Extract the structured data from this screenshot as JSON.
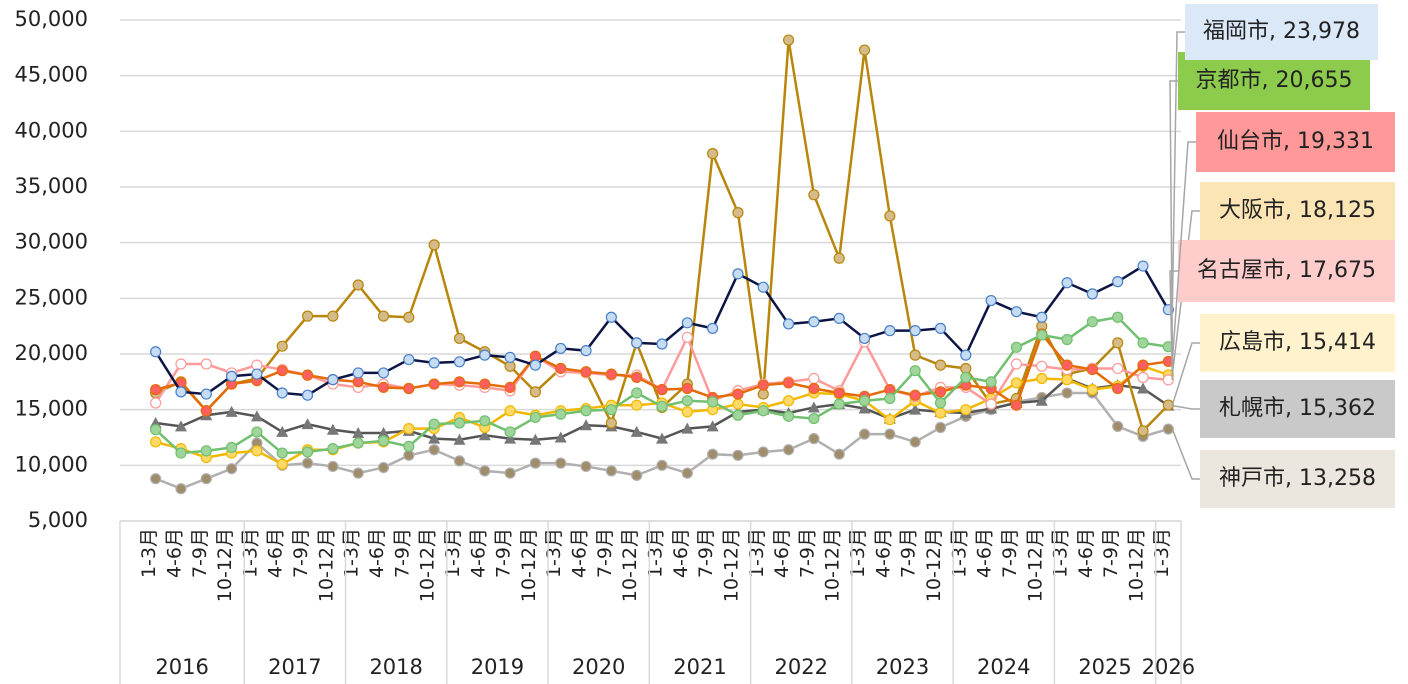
{
  "chart_data": {
    "type": "line",
    "categories": [
      "1-3月",
      "4-6月",
      "7-9月",
      "10-12月",
      "1-3月",
      "4-6月",
      "7-9月",
      "10-12月",
      "1-3月",
      "4-6月",
      "7-9月",
      "10-12月",
      "1-3月",
      "4-6月",
      "7-9月",
      "10-12月",
      "1-3月",
      "4-6月",
      "7-9月",
      "10-12月",
      "1-3月",
      "4-6月",
      "7-9月",
      "10-12月",
      "1-3月",
      "4-6月",
      "7-9月",
      "10-12月",
      "1-3月",
      "4-6月",
      "7-9月",
      "10-12月",
      "1-3月",
      "4-6月",
      "7-9月",
      "10-12月",
      "1-3月",
      "4-6月",
      "7-9月",
      "10-12月",
      "1-3月"
    ],
    "groups": [
      {
        "label": "2016",
        "span": 4
      },
      {
        "label": "2017",
        "span": 4
      },
      {
        "label": "2018",
        "span": 4
      },
      {
        "label": "2019",
        "span": 4
      },
      {
        "label": "2020",
        "span": 4
      },
      {
        "label": "2021",
        "span": 4
      },
      {
        "label": "2022",
        "span": 4
      },
      {
        "label": "2023",
        "span": 4
      },
      {
        "label": "2024",
        "span": 4
      },
      {
        "label": "2025",
        "span": 4
      },
      {
        "label": "2026",
        "span": 1
      }
    ],
    "ylim": [
      5000,
      50000
    ],
    "yticks": [
      {
        "value": 5000,
        "label": "5,000"
      },
      {
        "value": 10000,
        "label": "10,000"
      },
      {
        "value": 15000,
        "label": "15,000"
      },
      {
        "value": 20000,
        "label": "20,000"
      },
      {
        "value": 25000,
        "label": "25,000"
      },
      {
        "value": 30000,
        "label": "30,000"
      },
      {
        "value": 35000,
        "label": "35,000"
      },
      {
        "value": 40000,
        "label": "40,000"
      },
      {
        "value": 45000,
        "label": "45,000"
      },
      {
        "value": 50000,
        "label": "50,000"
      }
    ],
    "grid": true,
    "series": [
      {
        "label": "神戸市, 13,258",
        "color": "#b0b0b0",
        "marker_color": "#a08d6c",
        "marker": "circle",
        "label_color": "#ebe7df",
        "values": [
          8800,
          7900,
          8800,
          9700,
          12000,
          10000,
          10200,
          9900,
          9300,
          9800,
          10900,
          11400,
          10400,
          9500,
          9300,
          10200,
          10200,
          9900,
          9500,
          9100,
          10000,
          9300,
          11000,
          10900,
          11200,
          11400,
          12400,
          11000,
          12800,
          12800,
          12100,
          13400,
          14400,
          15000,
          15700,
          16100,
          16500,
          16500,
          13500,
          12600,
          13258
        ]
      },
      {
        "label": "札幌市, 15,362",
        "color": "#555555",
        "marker_color": "#777777",
        "marker": "triangle",
        "label_color": "#c9c9c9",
        "values": [
          13800,
          13500,
          14500,
          14800,
          14400,
          13000,
          13700,
          13200,
          12900,
          12900,
          13100,
          12400,
          12300,
          12700,
          12400,
          12300,
          12500,
          13600,
          13500,
          13000,
          12400,
          13300,
          13500,
          14800,
          15000,
          14700,
          15200,
          15500,
          15100,
          14200,
          15000,
          14800,
          14700,
          15100,
          15600,
          15800,
          17800,
          16900,
          17200,
          16900,
          15362
        ]
      },
      {
        "label": "広島市, 15,414",
        "color": "#b8860b",
        "marker_color": "#d6bb8a",
        "marker": "circle",
        "label_color": "#fff2cc",
        "values": [
          16500,
          17500,
          14900,
          17300,
          17800,
          20700,
          23400,
          23400,
          26200,
          23400,
          23300,
          29800,
          21400,
          20200,
          18900,
          16600,
          18700,
          18400,
          13800,
          21000,
          15200,
          17300,
          38000,
          32700,
          16400,
          48200,
          34300,
          28600,
          47300,
          32400,
          19900,
          19000,
          18700,
          15500,
          16000,
          22500,
          18200,
          18700,
          21000,
          13100,
          15414
        ]
      },
      {
        "label": "大阪市, 18,125",
        "color": "#f2b800",
        "marker_color": "#ffd966",
        "marker": "circle",
        "label_color": "#fbe5b4",
        "values": [
          12100,
          11500,
          10700,
          11100,
          11300,
          10100,
          11400,
          11400,
          12000,
          12100,
          13300,
          13300,
          14300,
          13400,
          14900,
          14500,
          14900,
          15100,
          15400,
          15400,
          15600,
          14800,
          15000,
          15500,
          15200,
          15800,
          16500,
          16400,
          15800,
          14100,
          15800,
          14700,
          15000,
          16000,
          17400,
          17800,
          17700,
          16800,
          17100,
          18900,
          18125
        ]
      },
      {
        "label": "名古屋市, 17,675",
        "color": "#ff9a9a",
        "marker_color": "#ffffff",
        "marker": "circle",
        "label_color": "#ffcccc",
        "values": [
          15600,
          19100,
          19100,
          18300,
          19000,
          18600,
          18100,
          17300,
          17000,
          17300,
          16900,
          17300,
          17200,
          17000,
          16700,
          19800,
          18400,
          18300,
          18100,
          18100,
          16800,
          21500,
          15800,
          16700,
          17300,
          17500,
          17800,
          16700,
          21100,
          16800,
          16200,
          17000,
          17000,
          15500,
          19100,
          18900,
          18600,
          18700,
          18700,
          17900,
          17675
        ]
      },
      {
        "label": "仙台市, 19,331",
        "color": "#e36c09",
        "marker_color": "#ff5f5f",
        "marker": "circle",
        "label_color": "#ff9999",
        "values": [
          16800,
          17400,
          14900,
          17300,
          17600,
          18500,
          18100,
          17700,
          17500,
          17000,
          16900,
          17300,
          17500,
          17300,
          17000,
          19800,
          18700,
          18400,
          18200,
          17900,
          16800,
          16900,
          16100,
          16400,
          17200,
          17400,
          16900,
          16500,
          16200,
          16800,
          16300,
          16600,
          17200,
          16900,
          15400,
          21800,
          19000,
          18600,
          16900,
          19000,
          19331
        ]
      },
      {
        "label": "京都市, 20,655",
        "color": "#70c070",
        "marker_color": "#9fd49a",
        "marker": "circle",
        "label_color": "#8dcb4c",
        "values": [
          13200,
          11100,
          11300,
          11600,
          13000,
          11100,
          11200,
          11500,
          12000,
          12200,
          11700,
          13700,
          13800,
          14000,
          13000,
          14300,
          14600,
          14900,
          15000,
          16500,
          15300,
          15800,
          15700,
          14500,
          14900,
          14400,
          14200,
          15500,
          15800,
          16000,
          18500,
          15600,
          17900,
          17500,
          20600,
          21700,
          21300,
          22900,
          23300,
          21000,
          20655
        ]
      },
      {
        "label": "福岡市, 23,978",
        "color": "#0d1545",
        "marker_color": "#c5dcf3",
        "marker": "circle",
        "label_color": "#dae8f8",
        "values": [
          20200,
          16600,
          16400,
          18000,
          18200,
          16500,
          16300,
          17700,
          18300,
          18300,
          19500,
          19200,
          19300,
          19900,
          19700,
          19000,
          20500,
          20300,
          23300,
          21000,
          20900,
          22800,
          22300,
          27200,
          26000,
          22700,
          22900,
          23200,
          21400,
          22100,
          22100,
          22300,
          19900,
          24800,
          23800,
          23300,
          26400,
          25400,
          26500,
          27900,
          23978
        ]
      }
    ]
  }
}
